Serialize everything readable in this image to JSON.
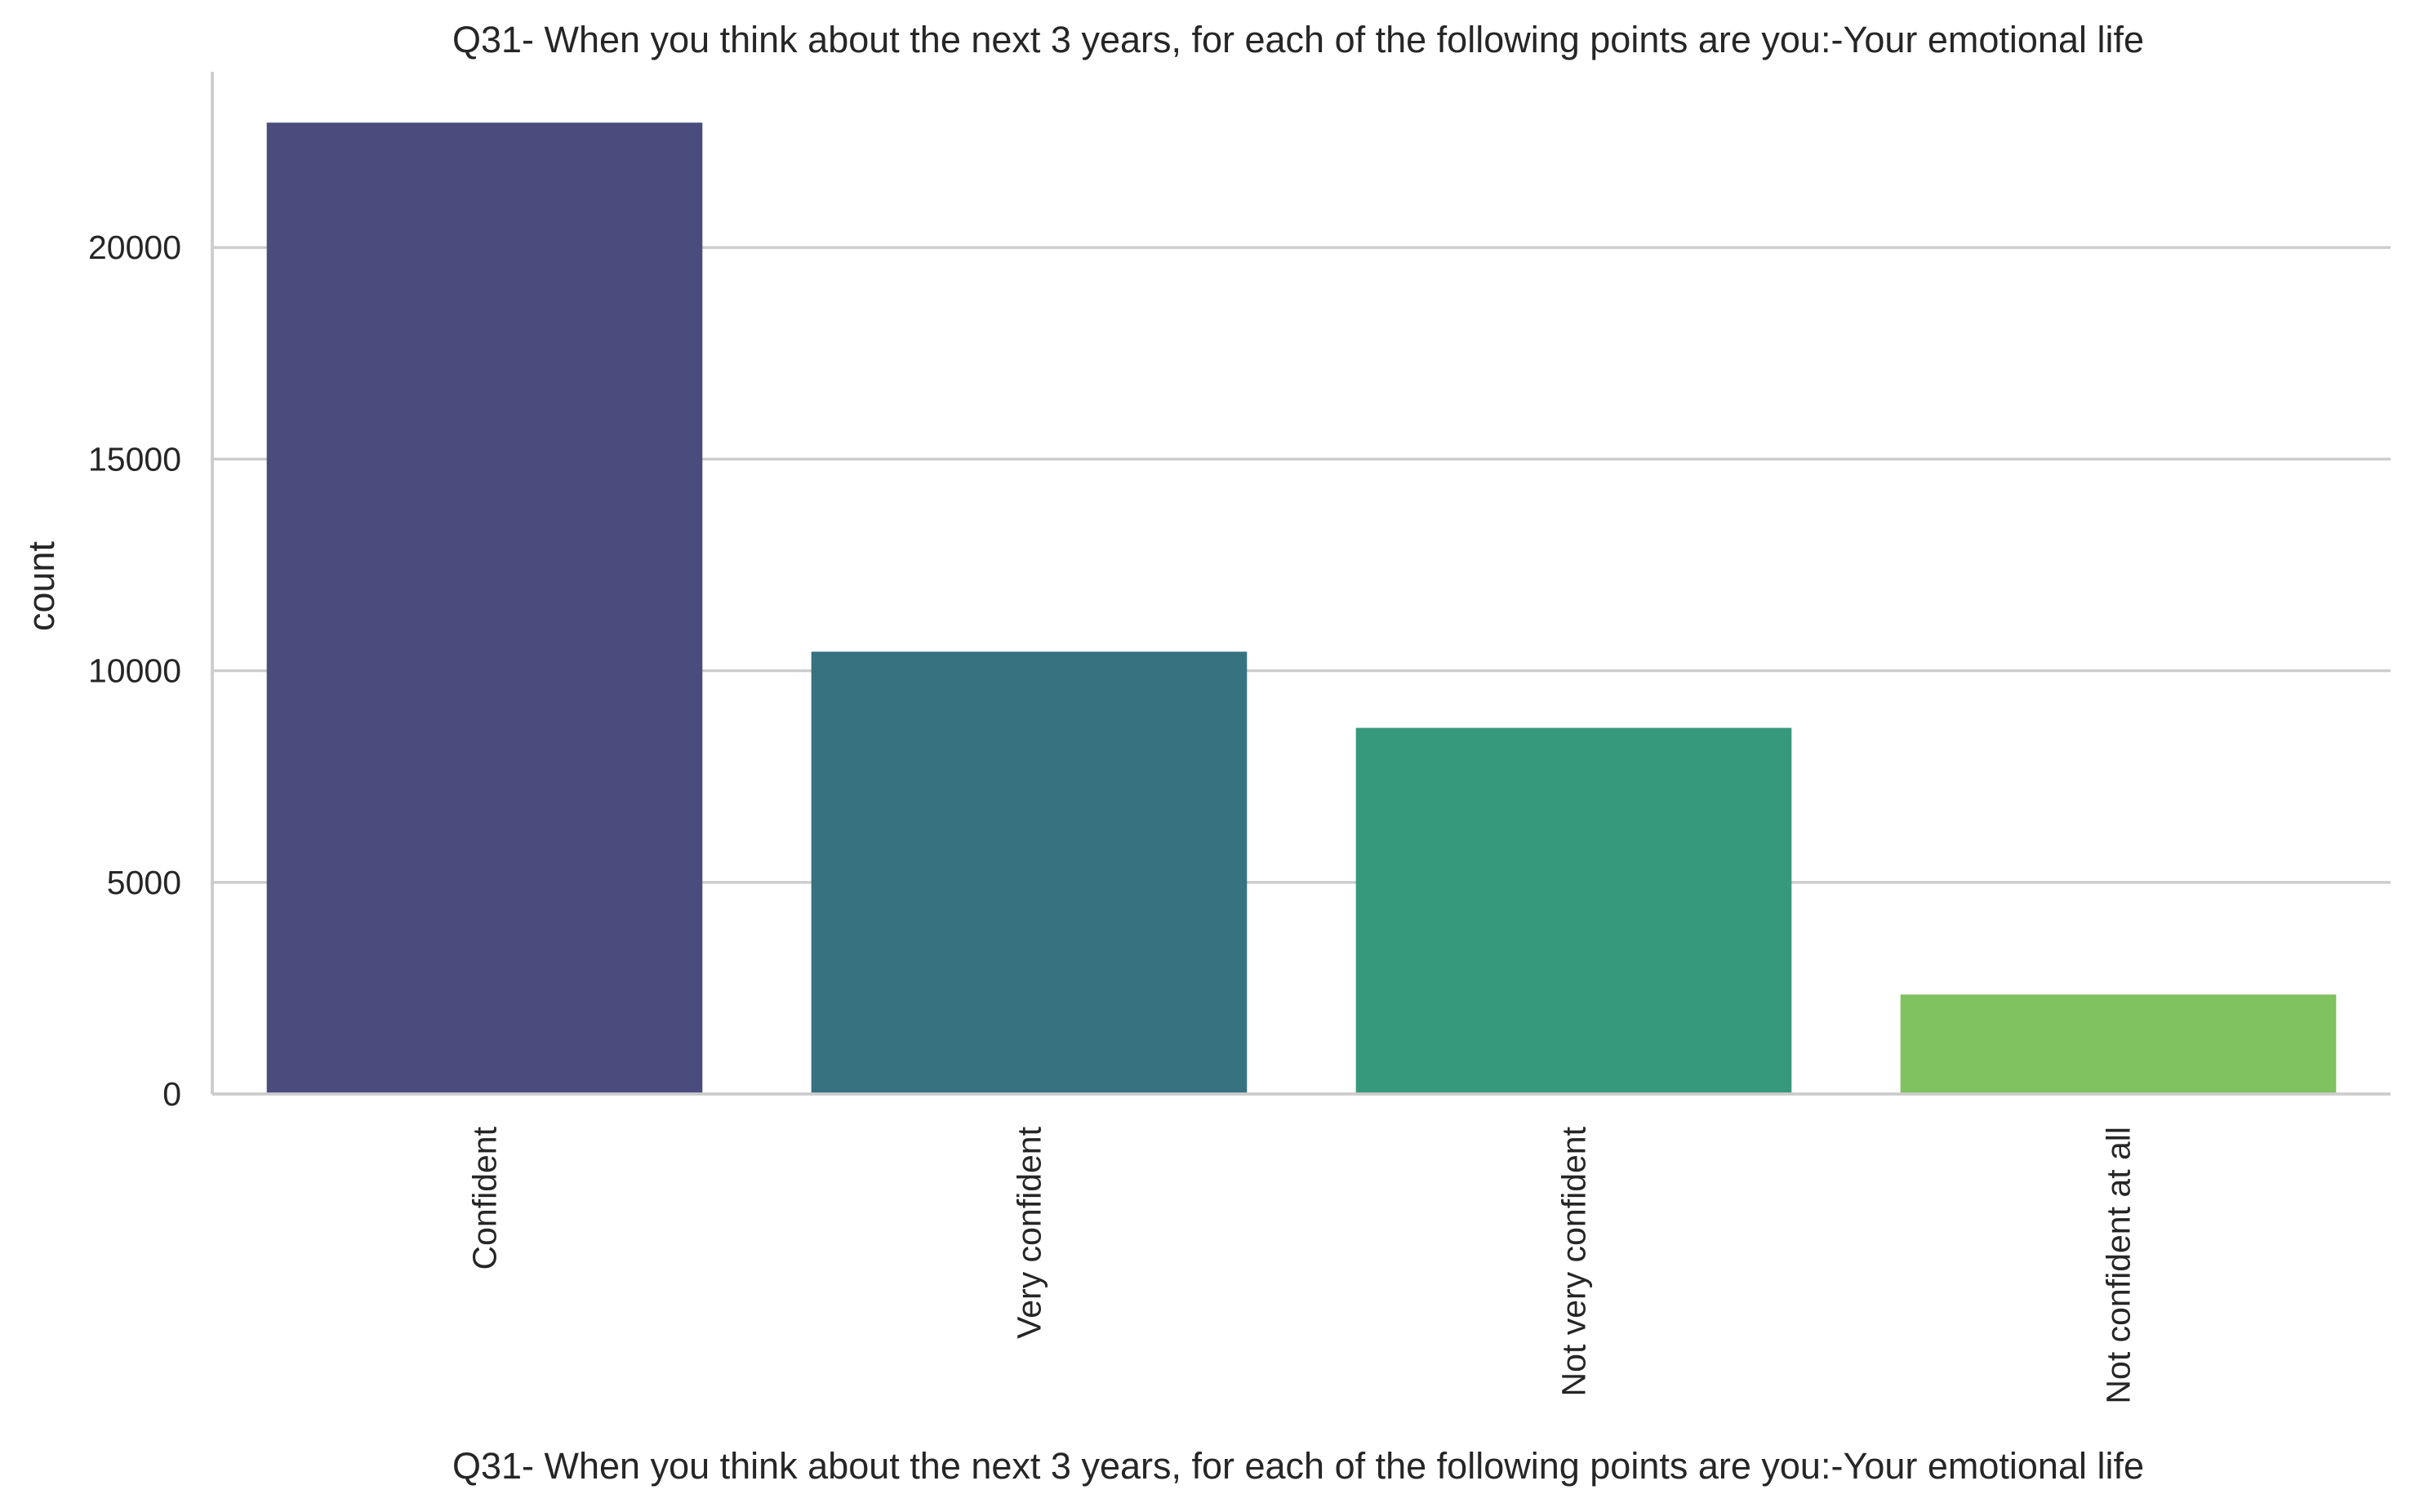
{
  "chart_data": {
    "type": "bar",
    "title": "Q31- When you think about the next 3 years, for each of the following points are you:-Your emotional life",
    "xlabel": "Q31- When you think about the next 3 years, for each of the following points are you:-Your emotional life",
    "ylabel": "count",
    "categories": [
      "Confident",
      "Very confident",
      "Not very confident",
      "Not confident at all"
    ],
    "values": [
      22950,
      10450,
      8650,
      2350
    ],
    "colors": [
      "#4a4c7d",
      "#367280",
      "#36997c",
      "#80c160"
    ],
    "ylim": [
      0,
      24150
    ],
    "yticks": [
      0,
      5000,
      10000,
      15000,
      20000
    ],
    "ytick_labels": [
      "0",
      "5000",
      "10000",
      "15000",
      "20000"
    ],
    "grid": "horizontal",
    "spines": [
      "left",
      "bottom"
    ],
    "xtick_rotation": "vertical",
    "grid_color": "#cccccc",
    "text_color": "#262626"
  }
}
